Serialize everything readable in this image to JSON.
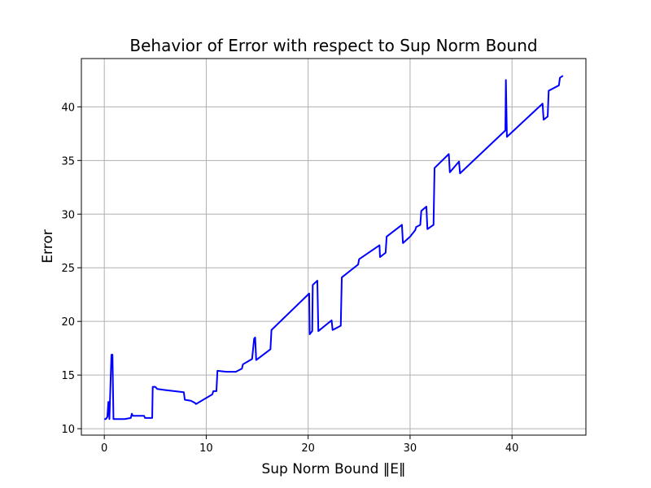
{
  "chart_data": {
    "type": "line",
    "title": "Behavior of Error with respect to Sup Norm Bound",
    "xlabel": "Sup Norm Bound ‖E‖",
    "ylabel": "Error",
    "xlim": [
      -2.25,
      47.25
    ],
    "ylim": [
      9.4,
      44.5
    ],
    "xticks": [
      0,
      10,
      20,
      30,
      40
    ],
    "yticks": [
      10,
      15,
      20,
      25,
      30,
      35,
      40
    ],
    "grid": true,
    "legend": null,
    "series": [
      {
        "color": "#0000ff",
        "x": [
          0.0,
          0.15,
          0.3,
          0.4,
          0.5,
          0.7,
          0.8,
          0.9,
          1.0,
          2.0,
          2.6,
          2.7,
          2.8,
          3.9,
          4.0,
          4.1,
          4.7,
          4.75,
          5.0,
          5.2,
          6.0,
          7.8,
          7.9,
          8.5,
          8.9,
          9.0,
          10.6,
          10.7,
          11.0,
          11.1,
          12.0,
          12.9,
          13.5,
          13.6,
          14.5,
          14.7,
          14.8,
          14.9,
          16.3,
          16.4,
          20.1,
          20.15,
          20.4,
          20.45,
          20.9,
          21.0,
          22.3,
          22.4,
          23.2,
          23.3,
          24.9,
          25.0,
          27.0,
          27.05,
          27.6,
          27.7,
          29.2,
          29.3,
          30.0,
          30.5,
          30.6,
          31.0,
          31.1,
          31.6,
          31.7,
          32.3,
          32.4,
          33.8,
          33.9,
          34.8,
          34.9,
          39.35,
          39.4,
          39.5,
          43.0,
          43.1,
          43.5,
          43.6,
          44.6,
          44.7,
          45.0
        ],
        "y": [
          10.9,
          10.9,
          11.1,
          12.5,
          10.9,
          16.9,
          16.9,
          10.9,
          10.9,
          10.9,
          11.0,
          11.4,
          11.2,
          11.2,
          11.0,
          11.0,
          11.0,
          13.9,
          13.9,
          13.7,
          13.6,
          13.4,
          12.7,
          12.6,
          12.4,
          12.3,
          13.2,
          13.5,
          13.5,
          15.4,
          15.3,
          15.3,
          15.6,
          16.0,
          16.5,
          18.4,
          18.5,
          16.4,
          17.4,
          19.2,
          22.6,
          18.8,
          19.1,
          23.4,
          23.8,
          19.1,
          20.1,
          19.2,
          19.6,
          24.1,
          25.3,
          25.8,
          27.1,
          26.0,
          26.4,
          27.9,
          29.0,
          27.3,
          27.9,
          28.5,
          28.8,
          29.0,
          30.3,
          30.7,
          28.6,
          29.0,
          34.3,
          35.6,
          33.9,
          34.9,
          33.8,
          37.8,
          42.5,
          37.2,
          40.3,
          38.8,
          39.1,
          41.5,
          42.0,
          42.7,
          42.9
        ]
      }
    ]
  }
}
